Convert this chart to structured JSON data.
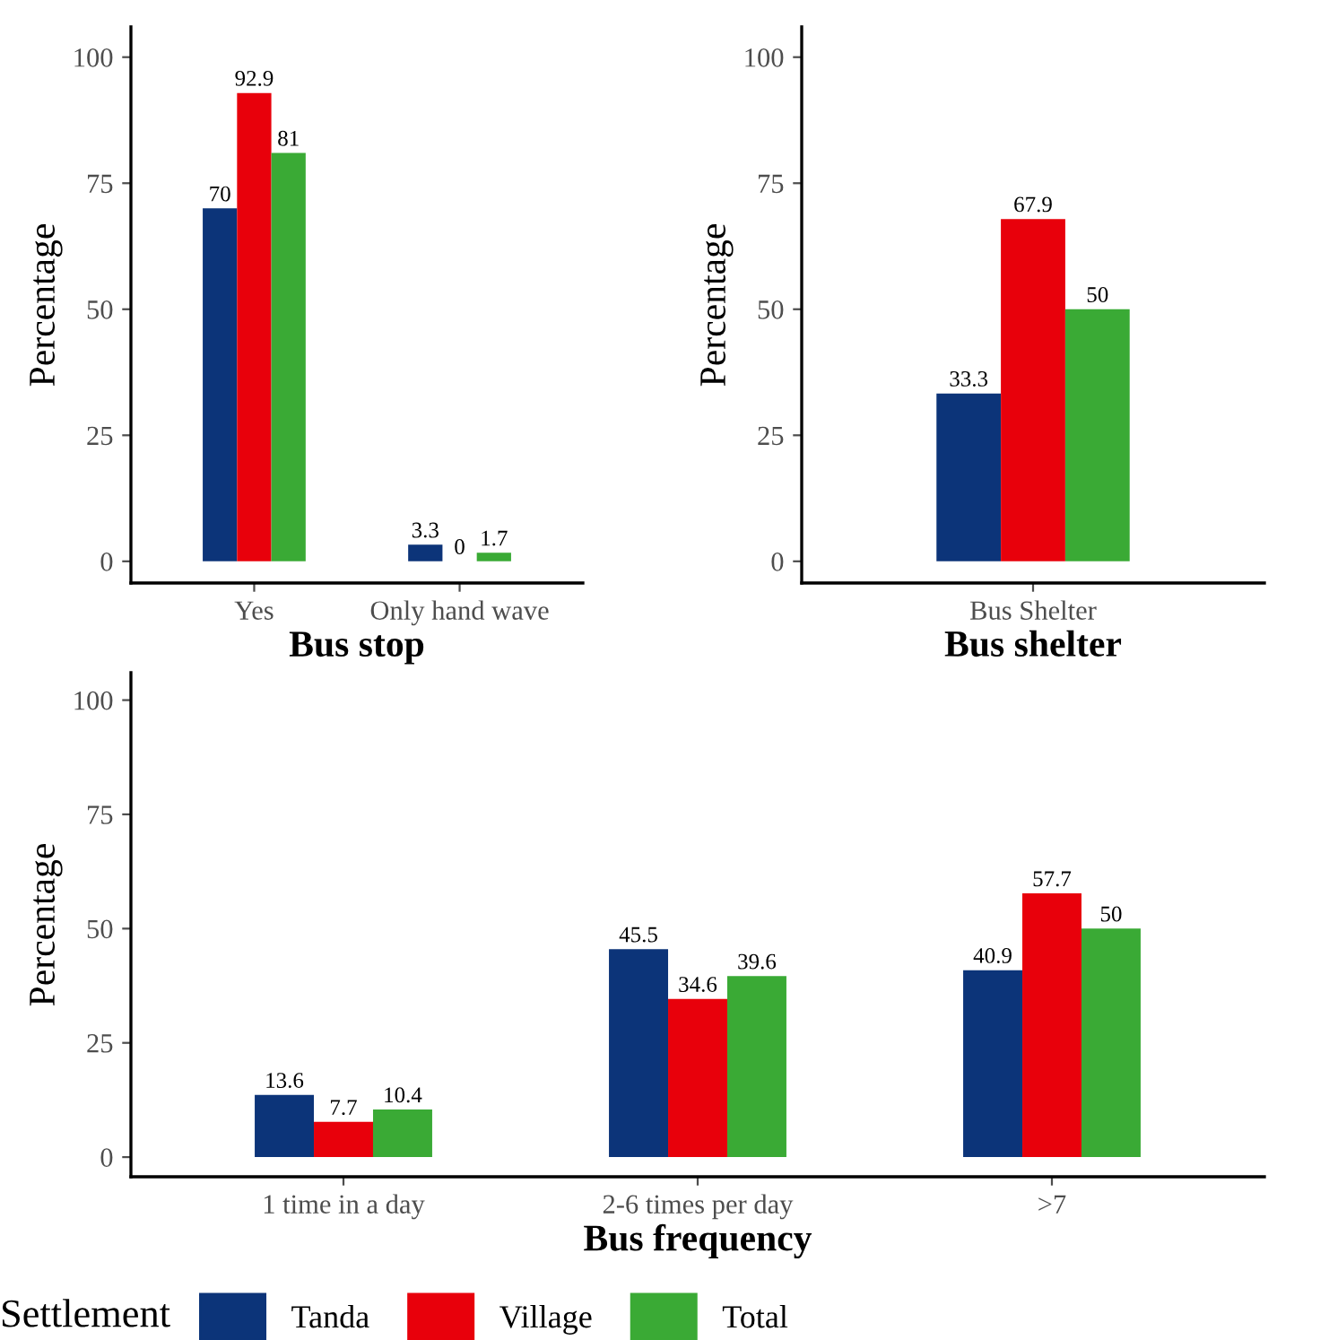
{
  "chart_data": [
    {
      "type": "bar",
      "xlabel": "Bus stop",
      "ylabel": "Percentage",
      "categories": [
        "Yes",
        "Only hand wave"
      ],
      "series": [
        {
          "color": "#0c3479",
          "values": [
            70,
            3.3
          ]
        },
        {
          "color": "#e8000b",
          "values": [
            92.9,
            0
          ]
        },
        {
          "color": "#3aaa35",
          "values": [
            81,
            1.7
          ]
        }
      ],
      "ylim": [
        -4.3,
        106
      ],
      "yticks": [
        0,
        25,
        50,
        75,
        100
      ],
      "data_labels": true,
      "grid": false
    },
    {
      "type": "bar",
      "xlabel": "Bus shelter",
      "ylabel": "Percentage",
      "categories": [
        "Bus Shelter"
      ],
      "series": [
        {
          "color": "#0c3479",
          "values": [
            33.3
          ]
        },
        {
          "color": "#e8000b",
          "values": [
            67.9
          ]
        },
        {
          "color": "#3aaa35",
          "values": [
            50
          ]
        }
      ],
      "ylim": [
        -4.3,
        106
      ],
      "yticks": [
        0,
        25,
        50,
        75,
        100
      ],
      "data_labels": true,
      "grid": false
    },
    {
      "type": "bar",
      "xlabel": "Bus frequency",
      "ylabel": "Percentage",
      "categories": [
        "1 time in a day",
        "2-6 times per day",
        ">7"
      ],
      "series": [
        {
          "name": "Tanda",
          "color": "#0c3479",
          "values": [
            13.6,
            45.5,
            40.9
          ]
        },
        {
          "name": "Village",
          "color": "#e8000b",
          "values": [
            7.7,
            34.6,
            57.7
          ]
        },
        {
          "name": "Total",
          "color": "#3aaa35",
          "values": [
            10.4,
            39.6,
            50
          ]
        }
      ],
      "ylim": [
        -4.3,
        106
      ],
      "yticks": [
        0,
        25,
        50,
        75,
        100
      ],
      "data_labels": true,
      "grid": false,
      "legend": "bottom",
      "legend_title": "Settlement"
    }
  ]
}
